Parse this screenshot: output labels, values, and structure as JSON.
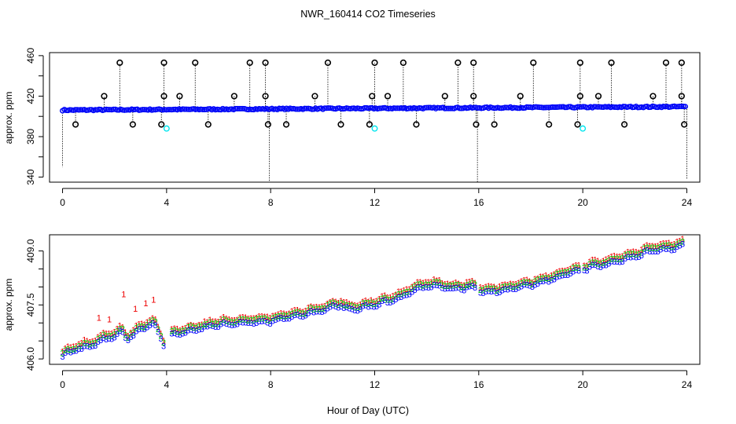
{
  "figure": {
    "title": "NWR_160414  CO2 Timeseries",
    "shared_xlabel": "Hour of Day (UTC)"
  },
  "colors": {
    "black_series": "#000000",
    "blue_series": "#0000ff",
    "green_series": "#00cc00",
    "red_series": "#ee0000",
    "cyan_series": "#00e5ee"
  },
  "chart_data": [
    {
      "type": "scatter",
      "name": "top-panel",
      "title": "",
      "xlabel": "",
      "ylabel": "approx. ppm",
      "xlim": [
        -0.5,
        24.5
      ],
      "ylim": [
        335,
        463
      ],
      "xticks": [
        0,
        4,
        8,
        12,
        16,
        20,
        24
      ],
      "xtick_labels": [
        "0",
        "4",
        "8",
        "12",
        "16",
        "20",
        "24"
      ],
      "yticks": [
        340,
        380,
        420,
        460
      ],
      "ytick_labels": [
        "340",
        "380",
        "420",
        "460"
      ],
      "minor_yticks": [
        360,
        400,
        440
      ],
      "baseline_start": 406.2,
      "baseline_end": 409.6,
      "series": [
        {
          "name": "baseline",
          "marker": "o",
          "color": "blue_series",
          "note": "dense near 406-410 across 0-24 h"
        },
        {
          "name": "spike_high",
          "marker": "o",
          "color": "black_series",
          "x": [
            2.2,
            3.9,
            5.1,
            7.2,
            7.8,
            10.2,
            12.0,
            13.1,
            15.2,
            15.8,
            18.1,
            19.9,
            21.1,
            23.2,
            23.8
          ],
          "y": [
            453,
            453,
            453,
            453,
            453,
            453,
            453,
            453,
            453,
            453,
            453,
            453,
            453,
            453,
            453
          ]
        },
        {
          "name": "spike_mid",
          "marker": "o",
          "color": "black_series",
          "x": [
            1.6,
            3.9,
            4.5,
            6.6,
            7.8,
            9.7,
            11.9,
            12.5,
            14.7,
            15.8,
            17.6,
            19.9,
            20.6,
            22.7,
            23.8
          ],
          "y": [
            420,
            420,
            420,
            420,
            420,
            420,
            420,
            420,
            420,
            420,
            420,
            420,
            420,
            420,
            420
          ]
        },
        {
          "name": "spike_low",
          "marker": "o",
          "color": "black_series",
          "x": [
            0.5,
            2.7,
            3.8,
            5.6,
            7.9,
            8.6,
            10.7,
            11.8,
            13.6,
            15.9,
            16.6,
            18.7,
            19.8,
            21.6,
            23.9
          ],
          "y": [
            392,
            392,
            392,
            392,
            392,
            392,
            392,
            392,
            392,
            392,
            392,
            392,
            392,
            392,
            392
          ]
        },
        {
          "name": "cyan",
          "marker": "o",
          "color": "cyan_series",
          "x": [
            4.0,
            12.0,
            20.0
          ],
          "y": [
            388,
            388,
            388
          ]
        },
        {
          "name": "drop_lines",
          "note": "dotted vertical lines from baseline",
          "x": [
            0.0,
            7.95,
            15.95,
            24.0
          ],
          "y": [
            350,
            335,
            335,
            338
          ]
        }
      ]
    },
    {
      "type": "scatter",
      "name": "bottom-panel",
      "title": "",
      "xlabel": "Hour of Day (UTC)",
      "ylabel": "approx. ppm",
      "xlim": [
        -0.5,
        24.5
      ],
      "ylim": [
        405.85,
        409.45
      ],
      "xticks": [
        0,
        4,
        8,
        12,
        16,
        20,
        24
      ],
      "xtick_labels": [
        "0",
        "4",
        "8",
        "12",
        "16",
        "20",
        "24"
      ],
      "yticks": [
        406.0,
        407.5,
        409.0
      ],
      "ytick_labels": [
        "406.0",
        "407.5",
        "409.0"
      ],
      "minor_yticks": [
        406.5,
        407.0,
        408.0,
        408.5
      ],
      "series": [
        {
          "name": "1",
          "marker": "1",
          "color": "red_series",
          "offset": 0.14
        },
        {
          "name": "2",
          "marker": "2",
          "color": "green_series",
          "offset": 0.08
        },
        {
          "name": "3",
          "marker": "3",
          "color": "blue_series",
          "offset": 0.0
        }
      ],
      "trend_x": [
        0,
        0.5,
        1,
        1.5,
        2,
        2.3,
        2.5,
        3,
        3.5,
        3.9,
        4.1,
        5,
        6,
        7,
        8,
        9,
        10,
        10.7,
        11.0,
        12,
        13,
        13.6,
        14.2,
        15,
        15.8,
        16.1,
        17,
        18,
        19,
        20,
        21,
        22,
        22.6,
        23.2,
        23.8
      ],
      "trend_y": [
        406.1,
        406.25,
        406.35,
        406.5,
        406.65,
        406.75,
        406.55,
        406.8,
        407.0,
        406.4,
        406.65,
        406.8,
        406.95,
        407.0,
        407.05,
        407.2,
        407.35,
        407.5,
        407.35,
        407.5,
        407.7,
        407.95,
        408.05,
        407.95,
        408.0,
        407.85,
        407.9,
        408.05,
        408.25,
        408.5,
        408.65,
        408.85,
        409.0,
        409.05,
        409.15
      ],
      "gaps": [
        [
          3.95,
          4.1
        ],
        [
          15.9,
          16.05
        ],
        [
          19.9,
          20.05
        ]
      ],
      "red_outliers": {
        "x": [
          1.4,
          1.8,
          2.35,
          2.8,
          3.2,
          3.5
        ],
        "y": [
          407.15,
          407.1,
          407.8,
          407.4,
          407.55,
          407.65
        ]
      }
    }
  ]
}
